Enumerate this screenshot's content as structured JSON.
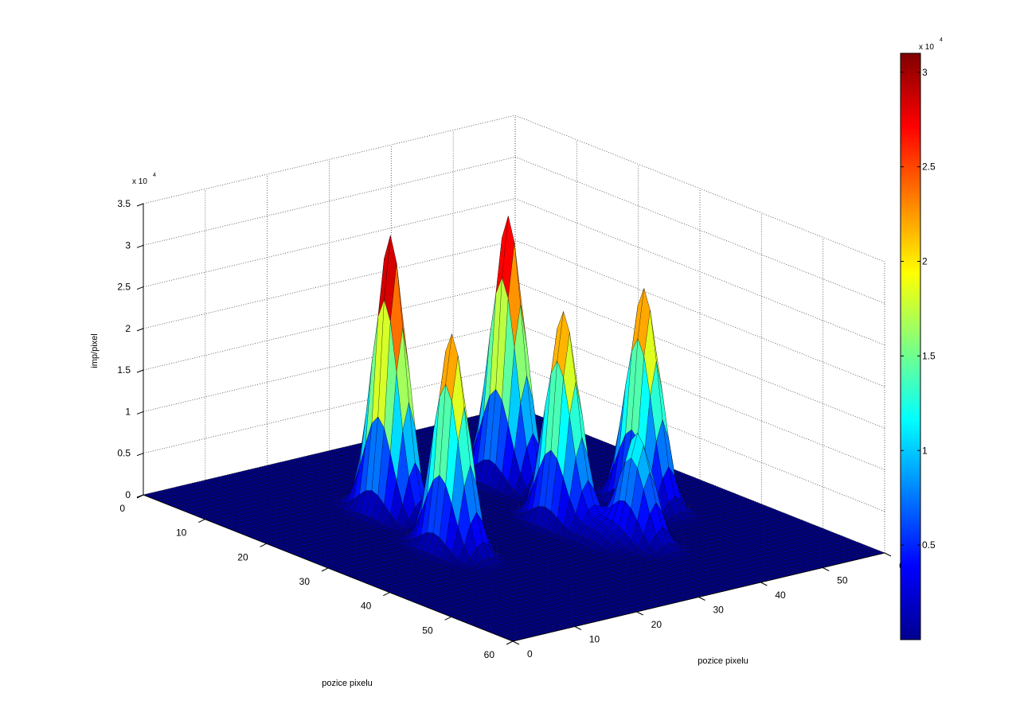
{
  "chart_data": {
    "type": "surface",
    "title": "",
    "xlabel": "pozice pixelu",
    "ylabel": "pozice pixelu",
    "zlabel": "imp/pixel",
    "zlim": [
      0,
      35000
    ],
    "x_range": [
      0,
      60
    ],
    "y_range": [
      0,
      60
    ],
    "x_ticks": [
      "0",
      "10",
      "20",
      "30",
      "40",
      "50",
      "60"
    ],
    "y_ticks": [
      "0",
      "10",
      "20",
      "30",
      "40",
      "50",
      "60"
    ],
    "z_ticks": [
      "0",
      "0.5",
      "1",
      "1.5",
      "2",
      "2.5",
      "3",
      "3.5"
    ],
    "z_exponent": "x 10",
    "z_exponent_power": "4",
    "grid": true,
    "colormap": "jet",
    "colorbar": {
      "position": "right",
      "ticks": [
        "0.5",
        "1",
        "1.5",
        "2",
        "2.5",
        "3"
      ],
      "range": [
        0,
        31000
      ],
      "exponent": "x 10",
      "exponent_power": "4"
    },
    "peaks": [
      {
        "x": 20,
        "y": 20,
        "height": 33500
      },
      {
        "x": 33,
        "y": 17,
        "height": 26000
      },
      {
        "x": 33,
        "y": 35,
        "height": 25500
      },
      {
        "x": 19,
        "y": 40,
        "height": 32000
      },
      {
        "x": 33,
        "y": 48,
        "height": 26000
      },
      {
        "x": 42,
        "y": 38,
        "height": 13000
      },
      {
        "x": 40,
        "y": 34,
        "height": 2000
      }
    ]
  }
}
